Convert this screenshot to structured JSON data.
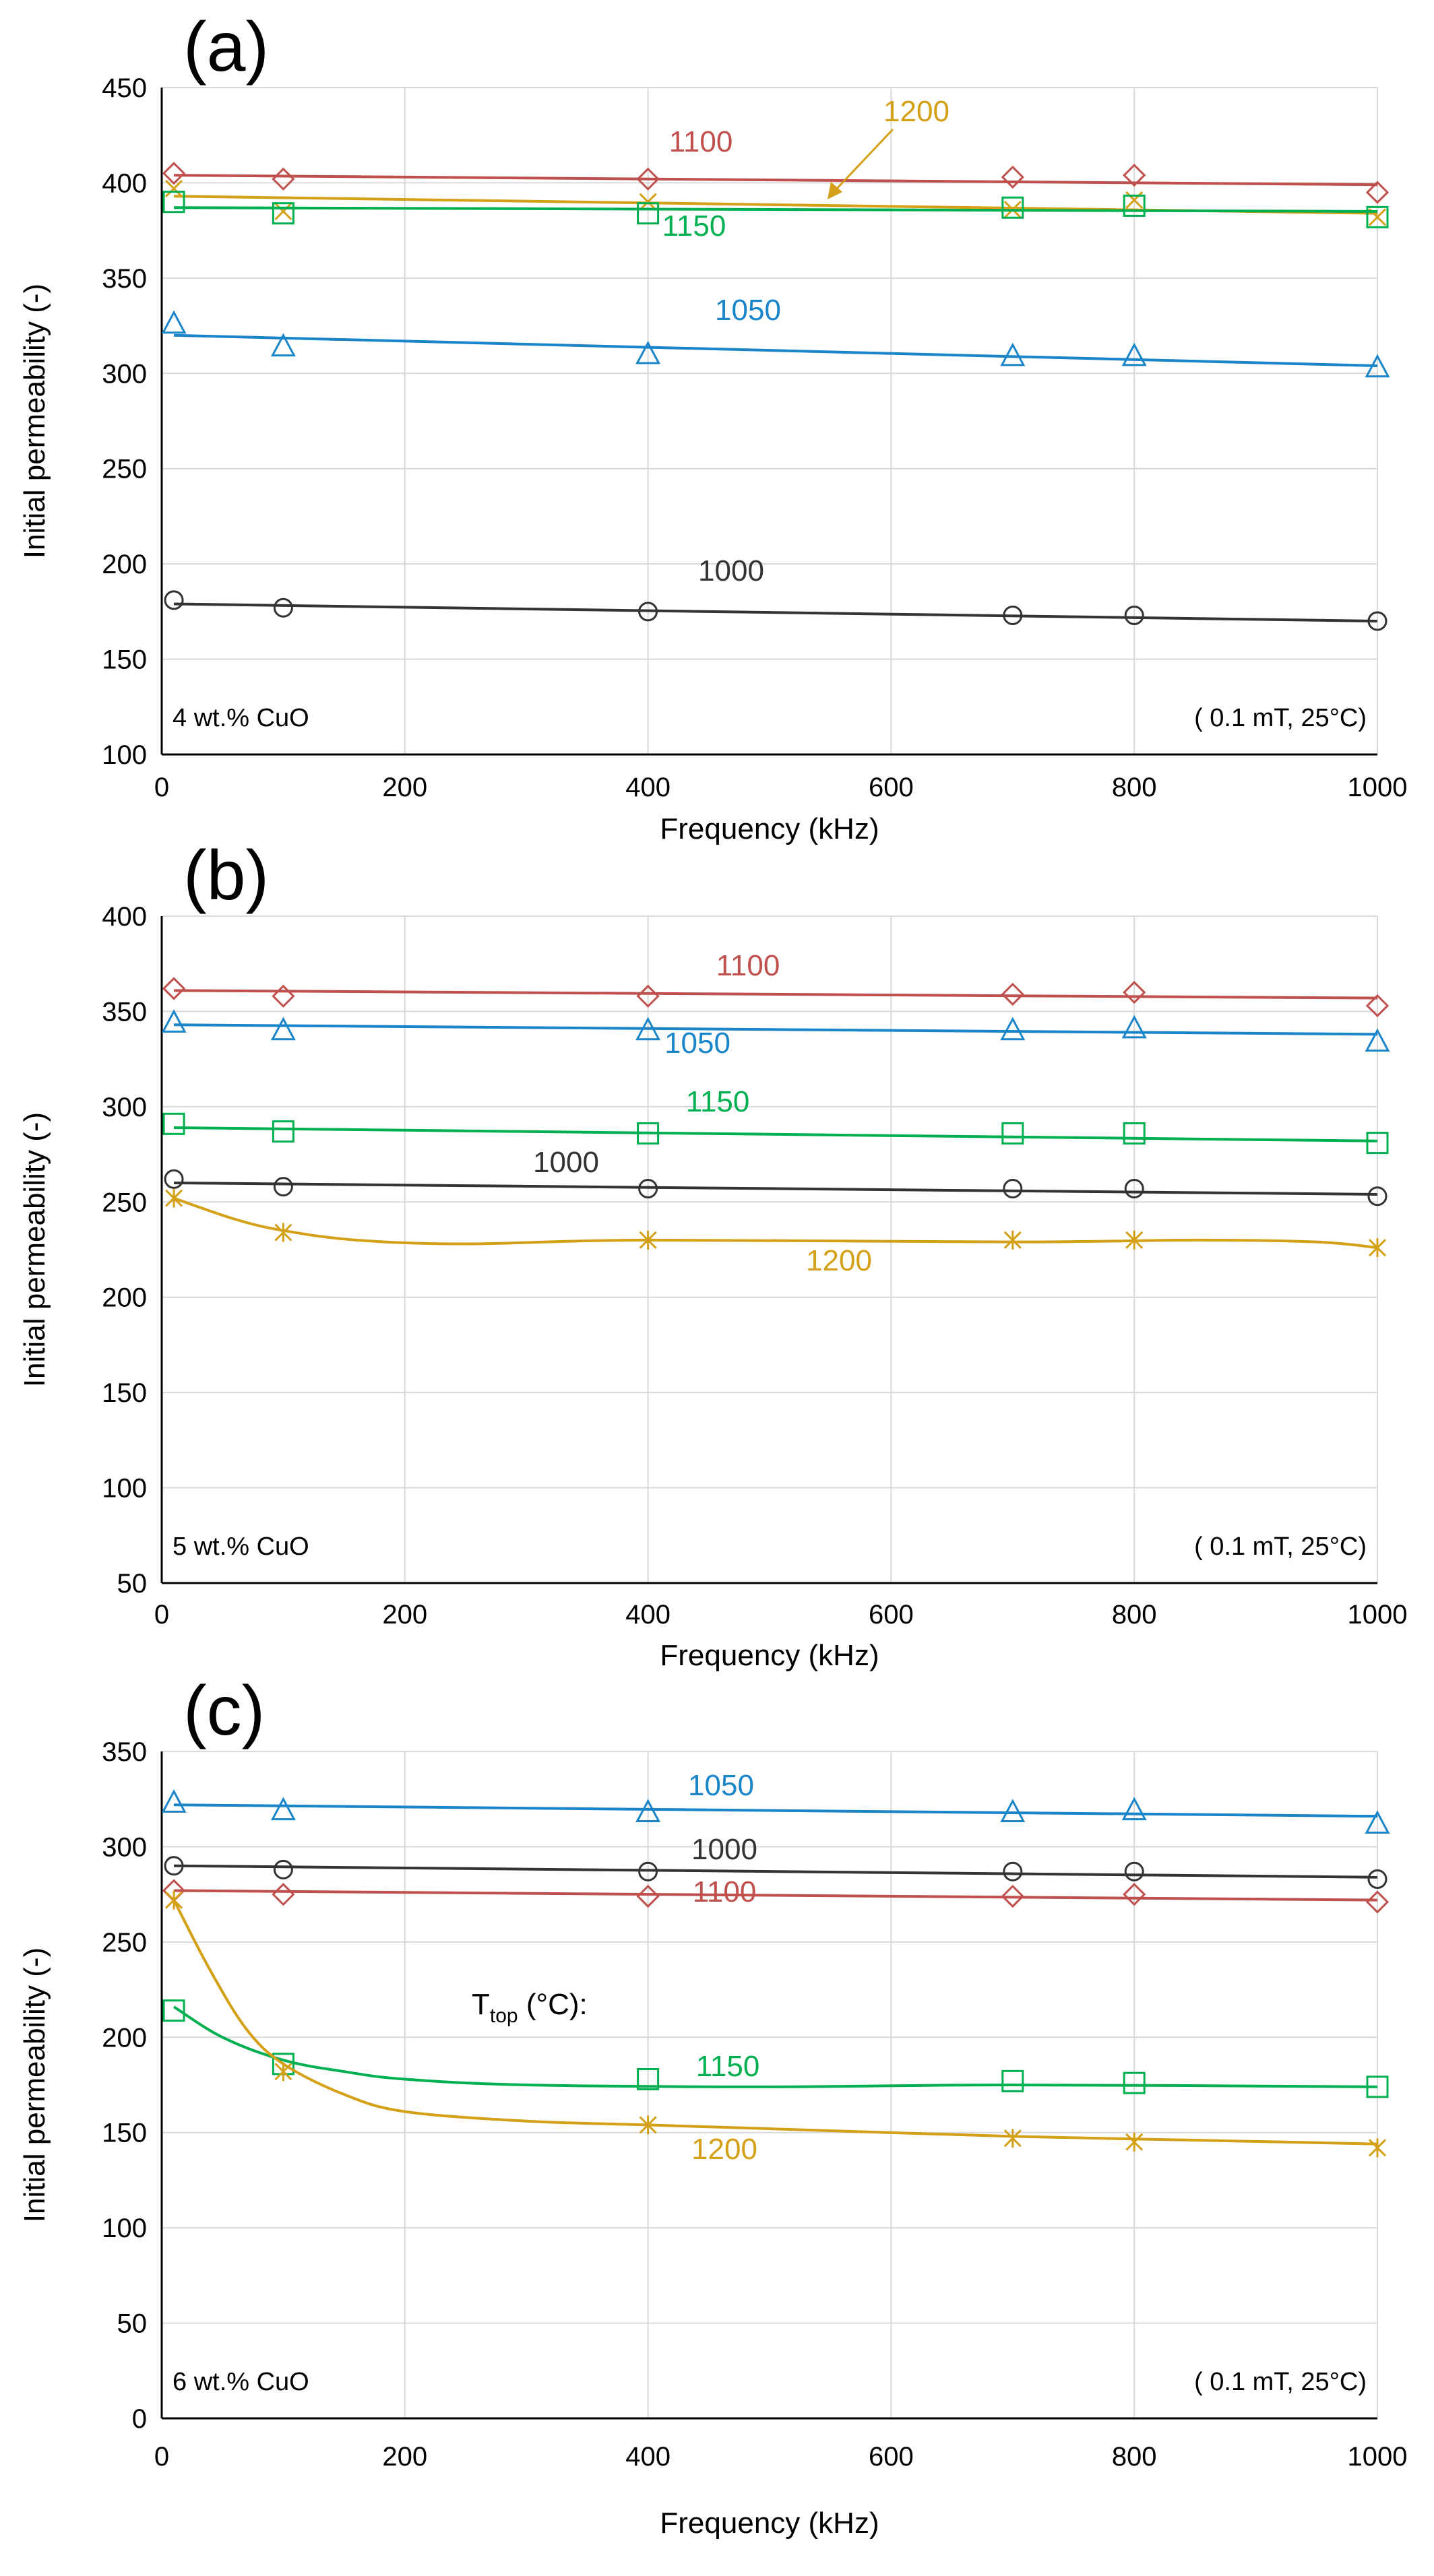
{
  "chart_data": [
    {
      "panel": "(a)",
      "type": "scatter",
      "xlabel": "Frequency (kHz)",
      "ylabel": "Initial permeability (-)",
      "xlim": [
        0,
        1000
      ],
      "ylim": [
        100,
        450
      ],
      "xticks": [
        0,
        200,
        400,
        600,
        800,
        1000
      ],
      "yticks": [
        100,
        150,
        200,
        250,
        300,
        350,
        400,
        450
      ],
      "grid": true,
      "note_left": "4 wt.% CuO",
      "note_right": "( 0.1 mT, 25°C)",
      "series": [
        {
          "name": "1100",
          "color": "#c0504d",
          "marker": "diamond",
          "x": [
            10,
            100,
            400,
            700,
            800,
            1000
          ],
          "y": [
            405,
            402,
            402,
            403,
            404,
            395
          ],
          "fit": [
            [
              10,
              404
            ],
            [
              1000,
              399
            ]
          ]
        },
        {
          "name": "1200",
          "color": "#d4a017",
          "marker": "x",
          "x": [
            10,
            100,
            400,
            700,
            800,
            1000
          ],
          "y": [
            397,
            385,
            390,
            386,
            391,
            382
          ],
          "fit": [
            [
              10,
              393
            ],
            [
              1000,
              384
            ]
          ]
        },
        {
          "name": "1150",
          "color": "#00b050",
          "marker": "square",
          "x": [
            10,
            100,
            400,
            700,
            800,
            1000
          ],
          "y": [
            390,
            384,
            384,
            387,
            388,
            382
          ],
          "fit": [
            [
              10,
              387
            ],
            [
              1000,
              385
            ]
          ]
        },
        {
          "name": "1050",
          "color": "#1a85c8",
          "marker": "triangle",
          "x": [
            10,
            100,
            400,
            700,
            800,
            1000
          ],
          "y": [
            326,
            314,
            310,
            309,
            309,
            303
          ],
          "fit": [
            [
              10,
              320
            ],
            [
              1000,
              304
            ]
          ]
        },
        {
          "name": "1000",
          "color": "#333333",
          "marker": "circle",
          "x": [
            10,
            100,
            400,
            700,
            800,
            1000
          ],
          "y": [
            181,
            177,
            175,
            173,
            173,
            170
          ],
          "fit": [
            [
              10,
              179
            ],
            [
              1000,
              170
            ]
          ]
        }
      ]
    },
    {
      "panel": "(b)",
      "type": "scatter",
      "xlabel": "Frequency (kHz)",
      "ylabel": "Initial permeability (-)",
      "xlim": [
        0,
        1000
      ],
      "ylim": [
        50,
        400
      ],
      "xticks": [
        0,
        200,
        400,
        600,
        800,
        1000
      ],
      "yticks": [
        50,
        100,
        150,
        200,
        250,
        300,
        350,
        400
      ],
      "grid": true,
      "note_left": "5 wt.% CuO",
      "note_right": "( 0.1 mT, 25°C)",
      "series": [
        {
          "name": "1100",
          "color": "#c0504d",
          "marker": "diamond",
          "x": [
            10,
            100,
            400,
            700,
            800,
            1000
          ],
          "y": [
            362,
            358,
            358,
            359,
            360,
            353
          ],
          "fit": [
            [
              10,
              361
            ],
            [
              1000,
              357
            ]
          ]
        },
        {
          "name": "1050",
          "color": "#1a85c8",
          "marker": "triangle",
          "x": [
            10,
            100,
            400,
            700,
            800,
            1000
          ],
          "y": [
            344,
            340,
            340,
            340,
            341,
            334
          ],
          "fit": [
            [
              10,
              343
            ],
            [
              1000,
              338
            ]
          ]
        },
        {
          "name": "1150",
          "color": "#00b050",
          "marker": "square",
          "x": [
            10,
            100,
            400,
            700,
            800,
            1000
          ],
          "y": [
            291,
            287,
            286,
            286,
            286,
            281
          ],
          "fit": [
            [
              10,
              289
            ],
            [
              1000,
              282
            ]
          ]
        },
        {
          "name": "1000",
          "color": "#333333",
          "marker": "circle",
          "x": [
            10,
            100,
            400,
            700,
            800,
            1000
          ],
          "y": [
            262,
            258,
            257,
            257,
            257,
            253
          ],
          "fit": [
            [
              10,
              260
            ],
            [
              1000,
              254
            ]
          ]
        },
        {
          "name": "1200",
          "color": "#d4a017",
          "marker": "asterisk",
          "x": [
            10,
            100,
            400,
            700,
            800,
            1000
          ],
          "y": [
            252,
            234,
            230,
            230,
            230,
            226
          ],
          "fit": [
            [
              10,
              252
            ],
            [
              60,
              241
            ],
            [
              100,
              235
            ],
            [
              160,
              230
            ],
            [
              250,
              228
            ],
            [
              400,
              230
            ],
            [
              700,
              229
            ],
            [
              850,
              230
            ],
            [
              950,
              229
            ],
            [
              1000,
              226
            ]
          ]
        }
      ]
    },
    {
      "panel": "(c)",
      "type": "scatter",
      "xlabel": "Frequency (kHz)",
      "ylabel": "Initial permeability (-)",
      "xlim": [
        0,
        1000
      ],
      "ylim": [
        0,
        350
      ],
      "xticks": [
        0,
        200,
        400,
        600,
        800,
        1000
      ],
      "yticks": [
        0,
        50,
        100,
        150,
        200,
        250,
        300,
        350
      ],
      "grid": true,
      "note_left": "6 wt.% CuO",
      "note_right": "( 0.1 mT, 25°C)",
      "legend_title": {
        "main": "T",
        "sub": "top",
        "rest": " (°C):"
      },
      "series": [
        {
          "name": "1050",
          "color": "#1a85c8",
          "marker": "triangle",
          "x": [
            10,
            100,
            400,
            700,
            800,
            1000
          ],
          "y": [
            323,
            319,
            318,
            318,
            319,
            312
          ],
          "fit": [
            [
              10,
              322
            ],
            [
              1000,
              316
            ]
          ]
        },
        {
          "name": "1000",
          "color": "#333333",
          "marker": "circle",
          "x": [
            10,
            100,
            400,
            700,
            800,
            1000
          ],
          "y": [
            290,
            288,
            287,
            287,
            287,
            283
          ],
          "fit": [
            [
              10,
              290
            ],
            [
              1000,
              284
            ]
          ]
        },
        {
          "name": "1100",
          "color": "#c0504d",
          "marker": "diamond",
          "x": [
            10,
            100,
            400,
            700,
            800,
            1000
          ],
          "y": [
            277,
            275,
            274,
            274,
            275,
            271
          ],
          "fit": [
            [
              10,
              277
            ],
            [
              1000,
              272
            ]
          ]
        },
        {
          "name": "1150",
          "color": "#00b050",
          "marker": "square",
          "x": [
            10,
            100,
            400,
            700,
            800,
            1000
          ],
          "y": [
            214,
            186,
            178,
            177,
            176,
            174
          ],
          "fit": [
            [
              10,
              216
            ],
            [
              50,
              200
            ],
            [
              100,
              188
            ],
            [
              150,
              182
            ],
            [
              200,
              178
            ],
            [
              300,
              175
            ],
            [
              500,
              174
            ],
            [
              700,
              175
            ],
            [
              1000,
              174
            ]
          ]
        },
        {
          "name": "1200",
          "color": "#d4a017",
          "marker": "asterisk",
          "x": [
            10,
            100,
            400,
            700,
            800,
            1000
          ],
          "y": [
            272,
            182,
            154,
            147,
            145,
            142
          ],
          "fit": [
            [
              10,
              272
            ],
            [
              40,
              235
            ],
            [
              70,
              204
            ],
            [
              100,
              186
            ],
            [
              150,
              170
            ],
            [
              200,
              161
            ],
            [
              300,
              156
            ],
            [
              400,
              154
            ],
            [
              500,
              152
            ],
            [
              700,
              148
            ],
            [
              850,
              146
            ],
            [
              1000,
              144
            ]
          ]
        }
      ]
    }
  ]
}
